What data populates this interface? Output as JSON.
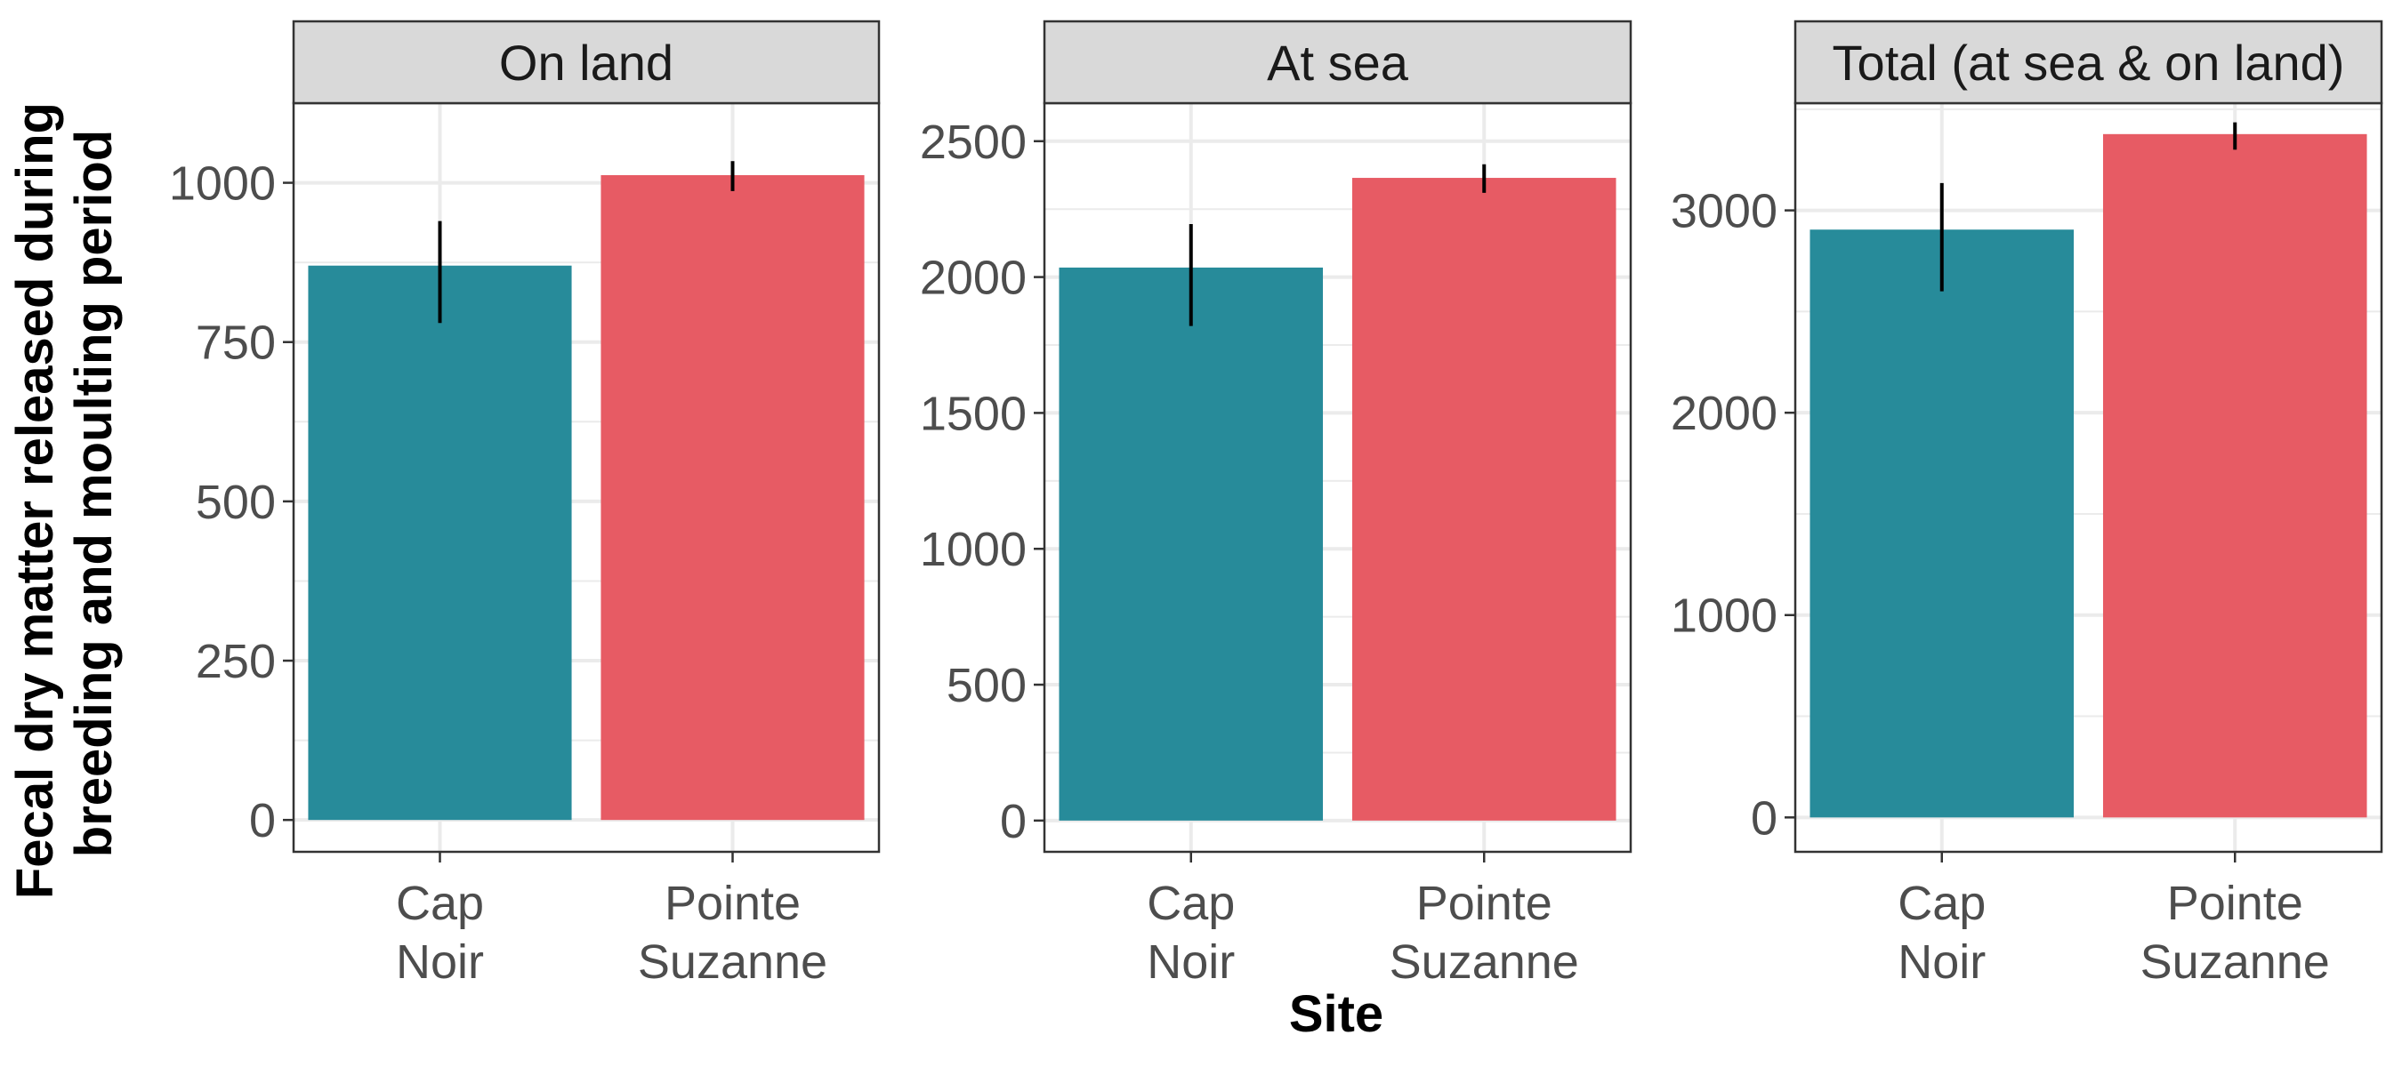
{
  "chart_data": {
    "type": "bar",
    "xlabel": "Site",
    "ylabel_lines": [
      "Fecal dry matter released during",
      "breeding and moulting period"
    ],
    "categories": [
      [
        "Cap",
        "Noir"
      ],
      [
        "Pointe",
        "Suzanne"
      ]
    ],
    "colors": [
      "#278B9A",
      "#E75B64"
    ],
    "errorbar_color": "#000000",
    "grid": true,
    "panels": [
      {
        "title": "On land",
        "values": [
          870,
          1012
        ],
        "error_low": [
          780,
          987
        ],
        "error_high": [
          940,
          1034
        ],
        "ylim": [
          -50,
          1125
        ],
        "yticks": [
          0,
          250,
          500,
          750,
          1000
        ]
      },
      {
        "title": "At sea",
        "values": [
          2035,
          2365
        ],
        "error_low": [
          1820,
          2310
        ],
        "error_high": [
          2195,
          2415
        ],
        "ylim": [
          -115,
          2640
        ],
        "yticks": [
          0,
          500,
          1000,
          1500,
          2000,
          2500
        ]
      },
      {
        "title": "Total (at sea & on land)",
        "values": [
          2905,
          3377
        ],
        "error_low": [
          2600,
          3300
        ],
        "error_high": [
          3135,
          3435
        ],
        "ylim": [
          -170,
          3530
        ],
        "yticks": [
          0,
          1000,
          2000,
          3000
        ]
      }
    ]
  }
}
